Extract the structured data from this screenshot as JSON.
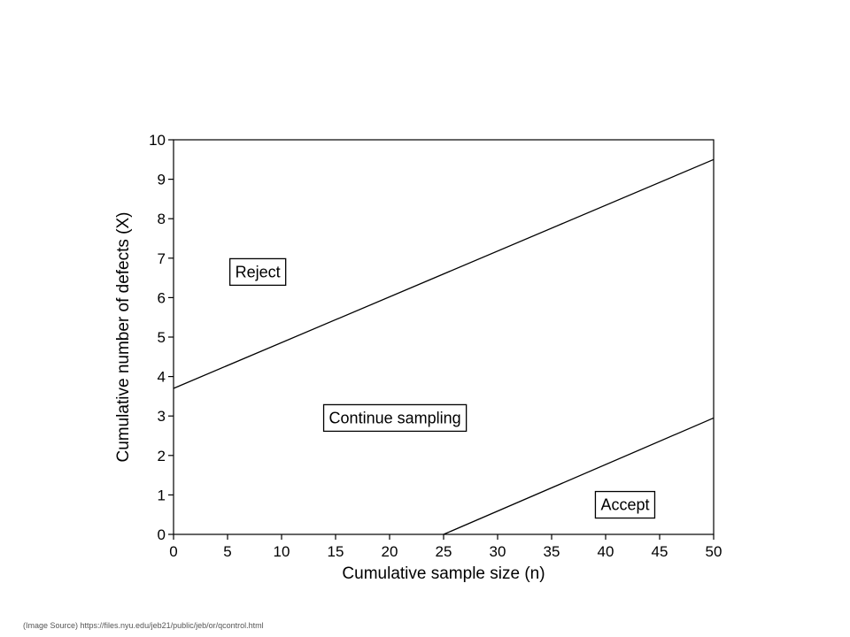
{
  "chart_data": {
    "type": "line",
    "title": "",
    "xlabel": "Cumulative sample size (n)",
    "ylabel": "Cumulative number of defects (X)",
    "xlim": [
      0,
      50
    ],
    "ylim": [
      0,
      10
    ],
    "x_ticks": [
      "0",
      "5",
      "10",
      "15",
      "20",
      "25",
      "30",
      "35",
      "40",
      "45",
      "50"
    ],
    "y_ticks": [
      "0",
      "1",
      "2",
      "3",
      "4",
      "5",
      "6",
      "7",
      "8",
      "9",
      "10"
    ],
    "grid": false,
    "series": [
      {
        "x": [
          0,
          50
        ],
        "y": [
          3.7,
          9.5
        ]
      },
      {
        "x": [
          25,
          50
        ],
        "y": [
          0,
          2.95
        ]
      }
    ],
    "annotations": [
      {
        "text": "Reject",
        "x": 7.8,
        "y": 6.65
      },
      {
        "text": "Continue sampling",
        "x": 20.5,
        "y": 2.95
      },
      {
        "text": "Accept",
        "x": 41.8,
        "y": 0.75
      }
    ],
    "colors": {
      "line": "#000000",
      "background": "#ffffff"
    }
  },
  "source_note": "(Image Source) https://files.nyu.edu/jeb21/public/jeb/or/qcontrol.html"
}
